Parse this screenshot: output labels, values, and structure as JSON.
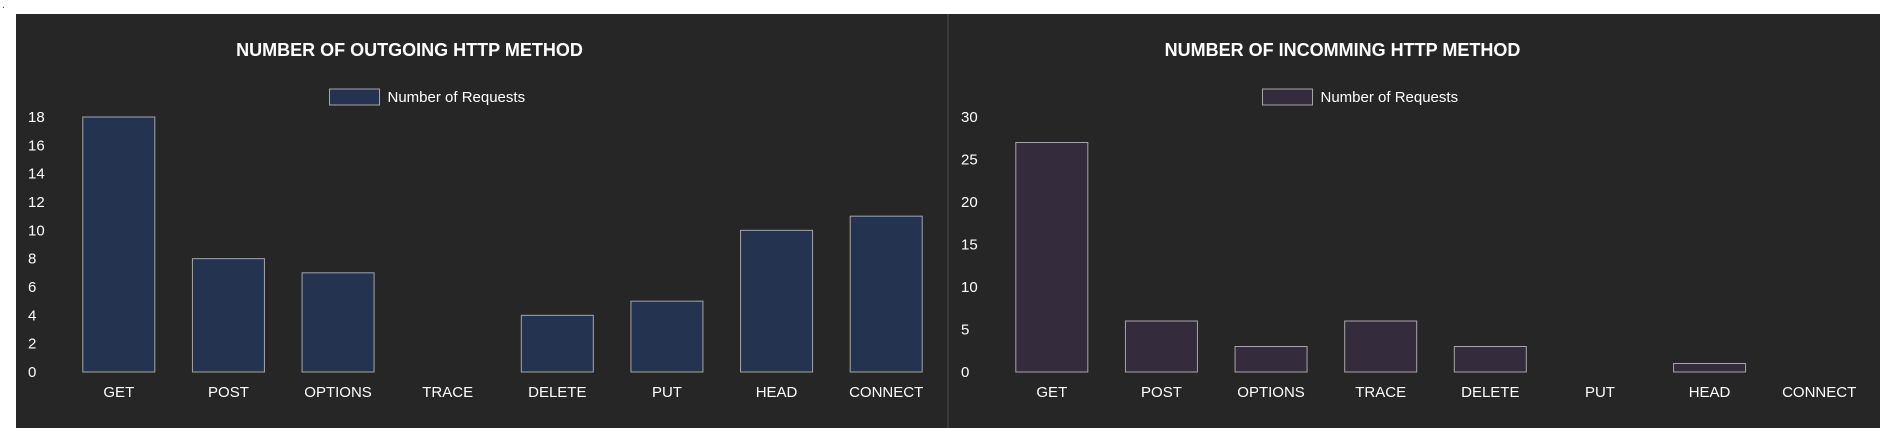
{
  "top_left_mark": ".",
  "chart_data": [
    {
      "type": "bar",
      "title": "NUMBER OF OUTGOING HTTP METHOD",
      "categories": [
        "GET",
        "POST",
        "OPTIONS",
        "TRACE",
        "DELETE",
        "PUT",
        "HEAD",
        "CONNECT"
      ],
      "series": [
        {
          "name": "Number of Requests",
          "values": [
            18,
            8,
            7,
            0,
            4,
            5,
            10,
            11
          ],
          "color": "#24334f"
        }
      ],
      "ylim": [
        0,
        18
      ],
      "yticks": [
        0,
        2,
        4,
        6,
        8,
        10,
        12,
        14,
        16,
        18
      ],
      "legend": "top-center",
      "grid": false,
      "background": "#262626"
    },
    {
      "type": "bar",
      "title": "NUMBER OF INCOMMING HTTP METHOD",
      "categories": [
        "GET",
        "POST",
        "OPTIONS",
        "TRACE",
        "DELETE",
        "PUT",
        "HEAD",
        "CONNECT"
      ],
      "series": [
        {
          "name": "Number of Requests",
          "values": [
            27,
            6,
            3,
            6,
            3,
            0,
            1,
            0
          ],
          "color": "#342b3d"
        }
      ],
      "ylim": [
        0,
        30
      ],
      "yticks": [
        0,
        5,
        10,
        15,
        20,
        25,
        30
      ],
      "legend": "top-center",
      "grid": false,
      "background": "#262626"
    }
  ]
}
